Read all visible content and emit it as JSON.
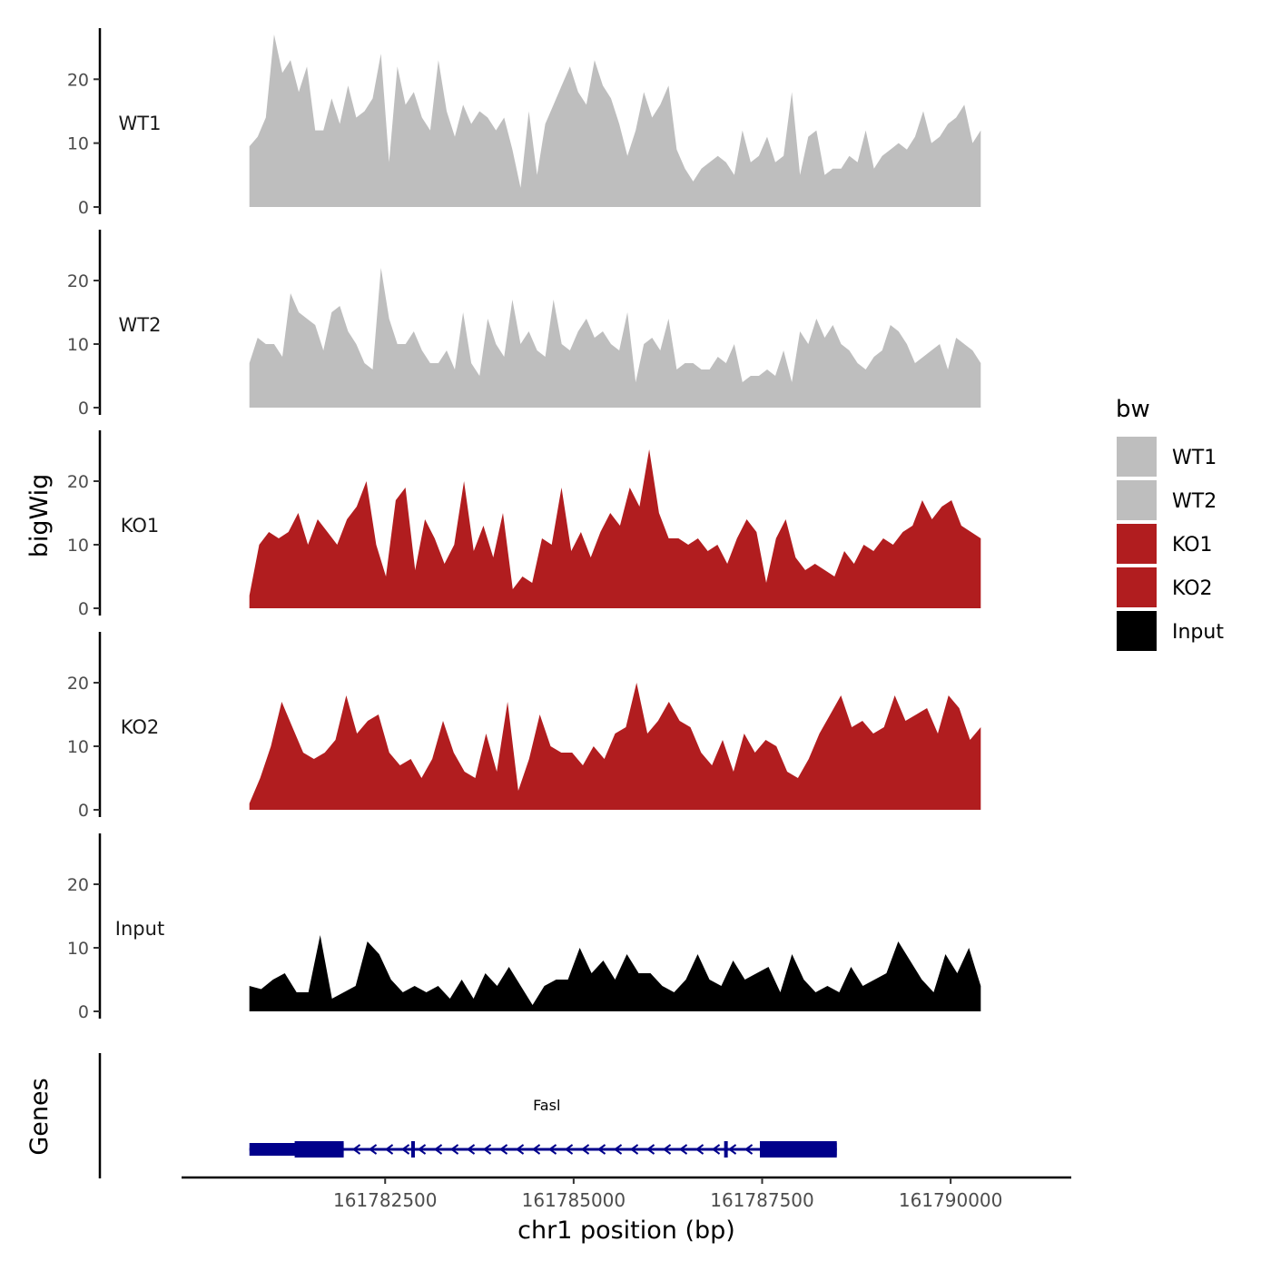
{
  "chart_data": {
    "type": "area",
    "tracks": [
      {
        "name": "WT1",
        "color": "#bebebe",
        "ylim": [
          0,
          28
        ],
        "yticks": [
          0,
          10,
          20
        ],
        "values": [
          9.5,
          11,
          14,
          27,
          21,
          23,
          18,
          22,
          12,
          12,
          17,
          13,
          19,
          14,
          15,
          17,
          24,
          7,
          22,
          16,
          18,
          14,
          12,
          23,
          15,
          11,
          16,
          13,
          15,
          14,
          12,
          14,
          9,
          3,
          15,
          5,
          13,
          16,
          19,
          22,
          18,
          16,
          23,
          19,
          17,
          13,
          8,
          12,
          18,
          14,
          16,
          19,
          9,
          6,
          4,
          6,
          7,
          8,
          7,
          5,
          12,
          7,
          8,
          11,
          7,
          8,
          18,
          5,
          11,
          12,
          5,
          6,
          6,
          8,
          7,
          12,
          6,
          8,
          9,
          10,
          9,
          11,
          15,
          10,
          11,
          13,
          14,
          16,
          10,
          12
        ]
      },
      {
        "name": "WT2",
        "color": "#bebebe",
        "ylim": [
          0,
          28
        ],
        "yticks": [
          0,
          10,
          20
        ],
        "values": [
          7,
          11,
          10,
          10,
          8,
          18,
          15,
          14,
          13,
          9,
          15,
          16,
          12,
          10,
          7,
          6,
          22,
          14,
          10,
          10,
          12,
          9,
          7,
          7,
          9,
          6,
          15,
          7,
          5,
          14,
          10,
          8,
          17,
          10,
          12,
          9,
          8,
          17,
          10,
          9,
          12,
          14,
          11,
          12,
          10,
          9,
          15,
          4,
          10,
          11,
          9,
          14,
          6,
          7,
          7,
          6,
          6,
          8,
          7,
          10,
          4,
          5,
          5,
          6,
          5,
          9,
          4,
          12,
          10,
          14,
          11,
          13,
          10,
          9,
          7,
          6,
          8,
          9,
          13,
          12,
          10,
          7,
          8,
          9,
          10,
          6,
          11,
          10,
          9,
          7
        ]
      },
      {
        "name": "KO1",
        "color": "#b11d1f",
        "ylim": [
          0,
          28
        ],
        "yticks": [
          0,
          10,
          20
        ],
        "values": [
          2,
          10,
          12,
          11,
          12,
          15,
          10,
          14,
          12,
          10,
          14,
          16,
          20,
          10,
          5,
          17,
          19,
          6,
          14,
          11,
          7,
          10,
          20,
          9,
          13,
          8,
          15,
          3,
          5,
          4,
          11,
          10,
          19,
          9,
          12,
          8,
          12,
          15,
          13,
          19,
          16,
          25,
          15,
          11,
          11,
          10,
          11,
          9,
          10,
          7,
          11,
          14,
          12,
          4,
          11,
          14,
          8,
          6,
          7,
          6,
          5,
          9,
          7,
          10,
          9,
          11,
          10,
          12,
          13,
          17,
          14,
          16,
          17,
          13,
          12,
          11
        ]
      },
      {
        "name": "KO2",
        "color": "#b11d1f",
        "ylim": [
          0,
          28
        ],
        "yticks": [
          0,
          10,
          20
        ],
        "values": [
          1,
          5,
          10,
          17,
          13,
          9,
          8,
          9,
          11,
          18,
          12,
          14,
          15,
          9,
          7,
          8,
          5,
          8,
          14,
          9,
          6,
          5,
          12,
          6,
          17,
          3,
          8,
          15,
          10,
          9,
          9,
          7,
          10,
          8,
          12,
          13,
          20,
          12,
          14,
          17,
          14,
          13,
          9,
          7,
          11,
          6,
          12,
          9,
          11,
          10,
          6,
          5,
          8,
          12,
          15,
          18,
          13,
          14,
          12,
          13,
          18,
          14,
          15,
          16,
          12,
          18,
          16,
          11,
          13
        ]
      },
      {
        "name": "Input",
        "color": "#000000",
        "ylim": [
          0,
          28
        ],
        "yticks": [
          0,
          10,
          20
        ],
        "values": [
          4,
          3.5,
          5,
          6,
          3,
          3,
          12,
          2,
          3,
          4,
          11,
          9,
          5,
          3,
          4,
          3,
          4,
          2,
          5,
          2,
          6,
          4,
          7,
          4,
          1,
          4,
          5,
          5,
          10,
          6,
          8,
          5,
          9,
          6,
          6,
          4,
          3,
          5,
          9,
          5,
          4,
          8,
          5,
          6,
          7,
          3,
          9,
          5,
          3,
          4,
          3,
          7,
          4,
          5,
          6,
          11,
          8,
          5,
          3,
          9,
          6,
          10,
          4
        ]
      }
    ],
    "genes": {
      "track_label": "Genes",
      "name": "Fasl",
      "color": "#00008b",
      "strand": "-",
      "start": 161780700,
      "end": 161788490,
      "exons": [
        [
          161780700,
          161781950
        ],
        [
          161788120,
          161788490
        ]
      ],
      "thick": [
        [
          161781300,
          161781950
        ],
        [
          161787470,
          161788490
        ]
      ],
      "small_exons": [
        161782870,
        161787020
      ]
    },
    "x_range": [
      161780700,
      161790400
    ],
    "xlim": [
      161779800,
      161791600
    ],
    "x_ticks": [
      161782500,
      161785000,
      161787500,
      161790000
    ],
    "x_tick_labels": [
      "161782500",
      "161785000",
      "161787500",
      "161790000"
    ],
    "xlabel": "chr1 position (bp)",
    "ylabel": "bigWig",
    "legend": {
      "title": "bw",
      "entries": [
        {
          "label": "WT1",
          "color": "#bebebe"
        },
        {
          "label": "WT2",
          "color": "#bebebe"
        },
        {
          "label": "KO1",
          "color": "#b11d1f"
        },
        {
          "label": "KO2",
          "color": "#b11d1f"
        },
        {
          "label": "Input",
          "color": "#000000"
        }
      ],
      "position": "right"
    }
  }
}
